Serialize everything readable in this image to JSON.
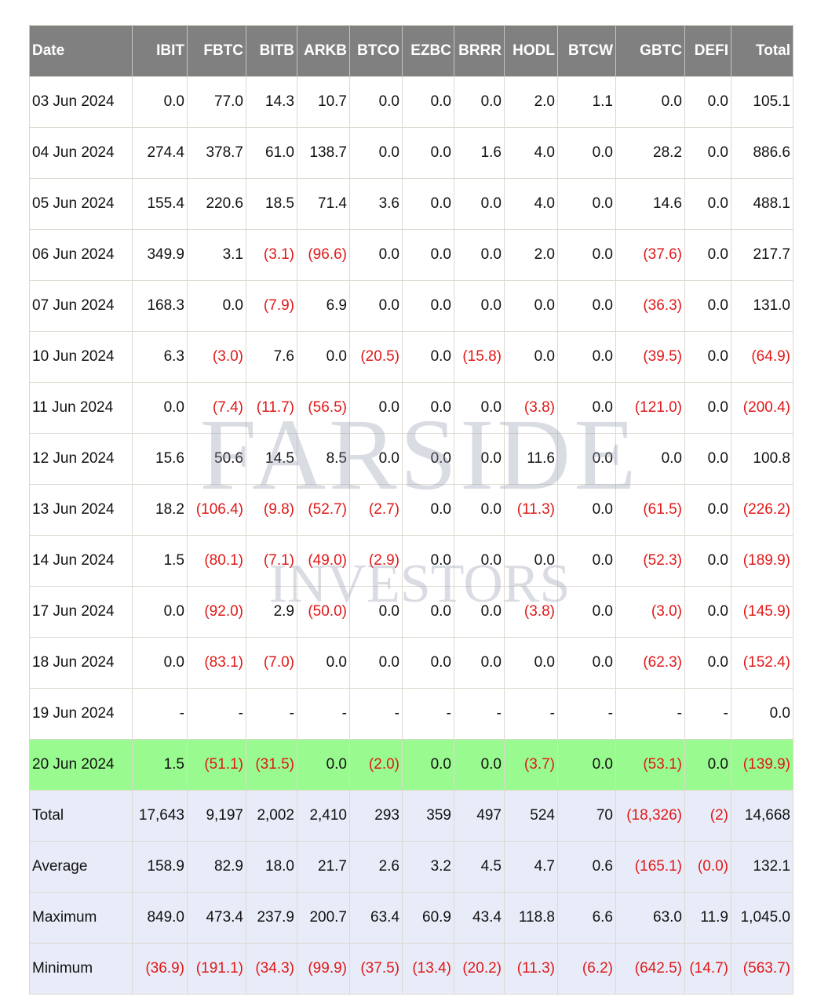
{
  "watermark": {
    "line1": "FARSIDE",
    "line2": "INVESTORS"
  },
  "colors": {
    "header_bg": "#808080",
    "negative": "#e01818",
    "highlight_row": "#99fb8f",
    "summary_row": "#e8ecf8"
  },
  "columns": [
    "Date",
    "IBIT",
    "FBTC",
    "BITB",
    "ARKB",
    "BTCO",
    "EZBC",
    "BRRR",
    "HODL",
    "BTCW",
    "GBTC",
    "DEFI",
    "Total"
  ],
  "rows": [
    [
      "03 Jun 2024",
      "0.0",
      "77.0",
      "14.3",
      "10.7",
      "0.0",
      "0.0",
      "0.0",
      "2.0",
      "1.1",
      "0.0",
      "0.0",
      "105.1"
    ],
    [
      "04 Jun 2024",
      "274.4",
      "378.7",
      "61.0",
      "138.7",
      "0.0",
      "0.0",
      "1.6",
      "4.0",
      "0.0",
      "28.2",
      "0.0",
      "886.6"
    ],
    [
      "05 Jun 2024",
      "155.4",
      "220.6",
      "18.5",
      "71.4",
      "3.6",
      "0.0",
      "0.0",
      "4.0",
      "0.0",
      "14.6",
      "0.0",
      "488.1"
    ],
    [
      "06 Jun 2024",
      "349.9",
      "3.1",
      "(3.1)",
      "(96.6)",
      "0.0",
      "0.0",
      "0.0",
      "2.0",
      "0.0",
      "(37.6)",
      "0.0",
      "217.7"
    ],
    [
      "07 Jun 2024",
      "168.3",
      "0.0",
      "(7.9)",
      "6.9",
      "0.0",
      "0.0",
      "0.0",
      "0.0",
      "0.0",
      "(36.3)",
      "0.0",
      "131.0"
    ],
    [
      "10 Jun 2024",
      "6.3",
      "(3.0)",
      "7.6",
      "0.0",
      "(20.5)",
      "0.0",
      "(15.8)",
      "0.0",
      "0.0",
      "(39.5)",
      "0.0",
      "(64.9)"
    ],
    [
      "11 Jun 2024",
      "0.0",
      "(7.4)",
      "(11.7)",
      "(56.5)",
      "0.0",
      "0.0",
      "0.0",
      "(3.8)",
      "0.0",
      "(121.0)",
      "0.0",
      "(200.4)"
    ],
    [
      "12 Jun 2024",
      "15.6",
      "50.6",
      "14.5",
      "8.5",
      "0.0",
      "0.0",
      "0.0",
      "11.6",
      "0.0",
      "0.0",
      "0.0",
      "100.8"
    ],
    [
      "13 Jun 2024",
      "18.2",
      "(106.4)",
      "(9.8)",
      "(52.7)",
      "(2.7)",
      "0.0",
      "0.0",
      "(11.3)",
      "0.0",
      "(61.5)",
      "0.0",
      "(226.2)"
    ],
    [
      "14 Jun 2024",
      "1.5",
      "(80.1)",
      "(7.1)",
      "(49.0)",
      "(2.9)",
      "0.0",
      "0.0",
      "0.0",
      "0.0",
      "(52.3)",
      "0.0",
      "(189.9)"
    ],
    [
      "17 Jun 2024",
      "0.0",
      "(92.0)",
      "2.9",
      "(50.0)",
      "0.0",
      "0.0",
      "0.0",
      "(3.8)",
      "0.0",
      "(3.0)",
      "0.0",
      "(145.9)"
    ],
    [
      "18 Jun 2024",
      "0.0",
      "(83.1)",
      "(7.0)",
      "0.0",
      "0.0",
      "0.0",
      "0.0",
      "0.0",
      "0.0",
      "(62.3)",
      "0.0",
      "(152.4)"
    ],
    [
      "19 Jun 2024",
      "-",
      "-",
      "-",
      "-",
      "-",
      "-",
      "-",
      "-",
      "-",
      "-",
      "-",
      "0.0"
    ],
    [
      "20 Jun 2024",
      "1.5",
      "(51.1)",
      "(31.5)",
      "0.0",
      "(2.0)",
      "0.0",
      "0.0",
      "(3.7)",
      "0.0",
      "(53.1)",
      "0.0",
      "(139.9)"
    ]
  ],
  "highlighted_row": "20 Jun 2024",
  "summary": [
    [
      "Total",
      "17,643",
      "9,197",
      "2,002",
      "2,410",
      "293",
      "359",
      "497",
      "524",
      "70",
      "(18,326)",
      "(2)",
      "14,668"
    ],
    [
      "Average",
      "158.9",
      "82.9",
      "18.0",
      "21.7",
      "2.6",
      "3.2",
      "4.5",
      "4.7",
      "0.6",
      "(165.1)",
      "(0.0)",
      "132.1"
    ],
    [
      "Maximum",
      "849.0",
      "473.4",
      "237.9",
      "200.7",
      "63.4",
      "60.9",
      "43.4",
      "118.8",
      "6.6",
      "63.0",
      "11.9",
      "1,045.0"
    ],
    [
      "Minimum",
      "(36.9)",
      "(191.1)",
      "(34.3)",
      "(99.9)",
      "(37.5)",
      "(13.4)",
      "(20.2)",
      "(11.3)",
      "(6.2)",
      "(642.5)",
      "(14.7)",
      "(563.7)"
    ]
  ]
}
